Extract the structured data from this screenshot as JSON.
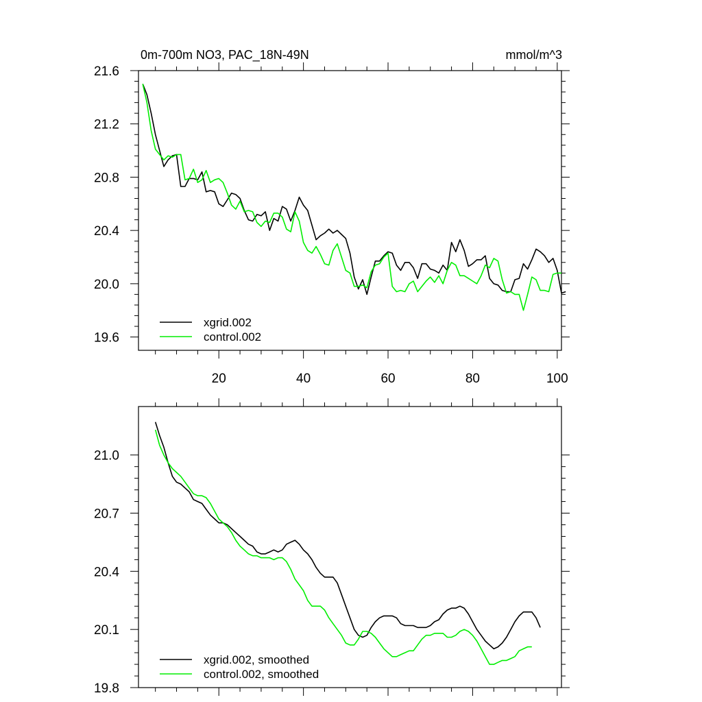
{
  "chart_data": [
    {
      "type": "line",
      "title": "0m-700m NO3, PAC_18N-49N",
      "units": "mmol/m^3",
      "xlabel": "",
      "ylabel": "",
      "xlim": [
        1,
        101
      ],
      "ylim": [
        19.5,
        21.6
      ],
      "xticks": [
        20,
        40,
        60,
        80,
        100
      ],
      "yticks": [
        19.6,
        20.0,
        20.4,
        20.8,
        21.2,
        21.6
      ],
      "ytick_labels": [
        "19.6",
        "20.0",
        "20.4",
        "20.8",
        "21.2",
        "21.6"
      ],
      "xtick_labels": [
        "20",
        "40",
        "60",
        "80",
        "100"
      ],
      "legend_position": "bottom-left",
      "series": [
        {
          "name": "xgrid.002",
          "color": "#000000",
          "x_start": 2,
          "values": [
            21.5,
            21.42,
            21.28,
            21.12,
            21.0,
            20.88,
            20.93,
            20.96,
            20.97,
            20.73,
            20.73,
            20.79,
            20.79,
            20.78,
            20.84,
            20.69,
            20.7,
            20.69,
            20.6,
            20.58,
            20.63,
            20.68,
            20.67,
            20.64,
            20.55,
            20.48,
            20.47,
            20.52,
            20.51,
            20.54,
            20.4,
            20.49,
            20.47,
            20.58,
            20.56,
            20.47,
            20.55,
            20.65,
            20.59,
            20.55,
            20.44,
            20.33,
            20.36,
            20.38,
            20.41,
            20.38,
            20.4,
            20.37,
            20.34,
            20.23,
            20.05,
            19.96,
            20.03,
            19.92,
            20.05,
            20.17,
            20.17,
            20.21,
            20.24,
            20.23,
            20.14,
            20.1,
            20.16,
            20.16,
            20.12,
            20.04,
            20.15,
            20.15,
            20.11,
            20.1,
            20.08,
            20.14,
            20.1,
            20.31,
            20.24,
            20.33,
            20.25,
            20.13,
            20.15,
            20.18,
            20.18,
            20.21,
            20.04,
            20.0,
            19.99,
            19.95,
            19.94,
            19.94,
            20.03,
            20.04,
            20.15,
            20.11,
            20.18,
            20.26,
            20.24,
            20.21,
            20.16,
            20.19,
            20.1,
            19.93,
            19.94
          ]
        },
        {
          "name": "control.002",
          "color": "#00ee00",
          "x_start": 2,
          "values": [
            21.5,
            21.36,
            21.15,
            21.01,
            20.97,
            20.93,
            20.96,
            20.95,
            20.97,
            20.97,
            20.78,
            20.79,
            20.86,
            20.76,
            20.78,
            20.85,
            20.76,
            20.78,
            20.79,
            20.76,
            20.68,
            20.59,
            20.56,
            20.62,
            20.54,
            20.55,
            20.54,
            20.46,
            20.43,
            20.47,
            20.46,
            20.53,
            20.53,
            20.5,
            20.41,
            20.39,
            20.54,
            20.47,
            20.31,
            20.25,
            20.23,
            20.28,
            20.22,
            20.15,
            20.14,
            20.25,
            20.3,
            20.2,
            20.1,
            20.08,
            19.98,
            19.98,
            19.99,
            19.97,
            20.09,
            20.14,
            20.15,
            20.2,
            20.23,
            19.98,
            19.94,
            19.95,
            19.94,
            20.0,
            20.02,
            19.94,
            19.98,
            20.02,
            20.05,
            20.01,
            20.06,
            20.0,
            20.1,
            20.16,
            20.14,
            20.06,
            20.06,
            20.04,
            20.02,
            20.0,
            20.06,
            20.14,
            20.12,
            20.19,
            20.17,
            20.03,
            19.93,
            19.94,
            19.92,
            19.92,
            19.8,
            19.92,
            20.05,
            20.03,
            19.95,
            19.95,
            19.94,
            20.07,
            20.08,
            20.08
          ]
        }
      ]
    },
    {
      "type": "line",
      "title": "",
      "xlabel": "",
      "ylabel": "",
      "xlim": [
        1,
        101
      ],
      "ylim": [
        19.8,
        21.25
      ],
      "xticks": [
        20,
        40,
        60,
        80,
        100
      ],
      "yticks": [
        19.8,
        20.1,
        20.4,
        20.7,
        21.0
      ],
      "ytick_labels": [
        "19.8",
        "20.1",
        "20.4",
        "20.7",
        "21.0"
      ],
      "legend_position": "bottom-left",
      "series": [
        {
          "name": "xgrid.002, smoothed",
          "color": "#000000",
          "x_start": 5,
          "values": [
            21.17,
            21.1,
            21.04,
            20.96,
            20.89,
            20.86,
            20.85,
            20.83,
            20.81,
            20.77,
            20.76,
            20.75,
            20.72,
            20.69,
            20.67,
            20.65,
            20.65,
            20.64,
            20.62,
            20.6,
            20.58,
            20.56,
            20.54,
            20.53,
            20.5,
            20.49,
            20.49,
            20.5,
            20.51,
            20.5,
            20.51,
            20.54,
            20.55,
            20.56,
            20.54,
            20.51,
            20.49,
            20.46,
            20.42,
            20.39,
            20.37,
            20.37,
            20.37,
            20.34,
            20.28,
            20.22,
            20.16,
            20.1,
            20.07,
            20.06,
            20.07,
            20.11,
            20.14,
            20.16,
            20.17,
            20.17,
            20.17,
            20.16,
            20.13,
            20.12,
            20.12,
            20.12,
            20.11,
            20.11,
            20.11,
            20.12,
            20.14,
            20.15,
            20.18,
            20.2,
            20.21,
            20.21,
            20.22,
            20.21,
            20.18,
            20.14,
            20.1,
            20.07,
            20.04,
            20.02,
            20.0,
            20.01,
            20.03,
            20.06,
            20.1,
            20.14,
            20.17,
            20.19,
            20.19,
            20.19,
            20.16,
            20.11
          ]
        },
        {
          "name": "control.002, smoothed",
          "color": "#00ee00",
          "x_start": 5,
          "values": [
            21.13,
            21.05,
            21.0,
            20.96,
            20.93,
            20.91,
            20.89,
            20.86,
            20.83,
            20.8,
            20.79,
            20.79,
            20.78,
            20.75,
            20.71,
            20.67,
            20.65,
            20.63,
            20.6,
            20.56,
            20.53,
            20.51,
            20.49,
            20.48,
            20.48,
            20.47,
            20.47,
            20.47,
            20.46,
            20.47,
            20.47,
            20.45,
            20.41,
            20.36,
            20.33,
            20.3,
            20.25,
            20.22,
            20.22,
            20.22,
            20.2,
            20.16,
            20.13,
            20.1,
            20.07,
            20.03,
            20.02,
            20.02,
            20.05,
            20.09,
            20.09,
            20.08,
            20.06,
            20.03,
            20.0,
            19.98,
            19.96,
            19.96,
            19.97,
            19.98,
            19.99,
            19.99,
            20.02,
            20.05,
            20.07,
            20.07,
            20.08,
            20.08,
            20.08,
            20.06,
            20.06,
            20.07,
            20.09,
            20.1,
            20.09,
            20.07,
            20.04,
            20.0,
            19.96,
            19.92,
            19.92,
            19.93,
            19.94,
            19.94,
            19.95,
            19.96,
            19.99,
            20.0,
            20.01,
            20.01
          ]
        }
      ]
    }
  ]
}
